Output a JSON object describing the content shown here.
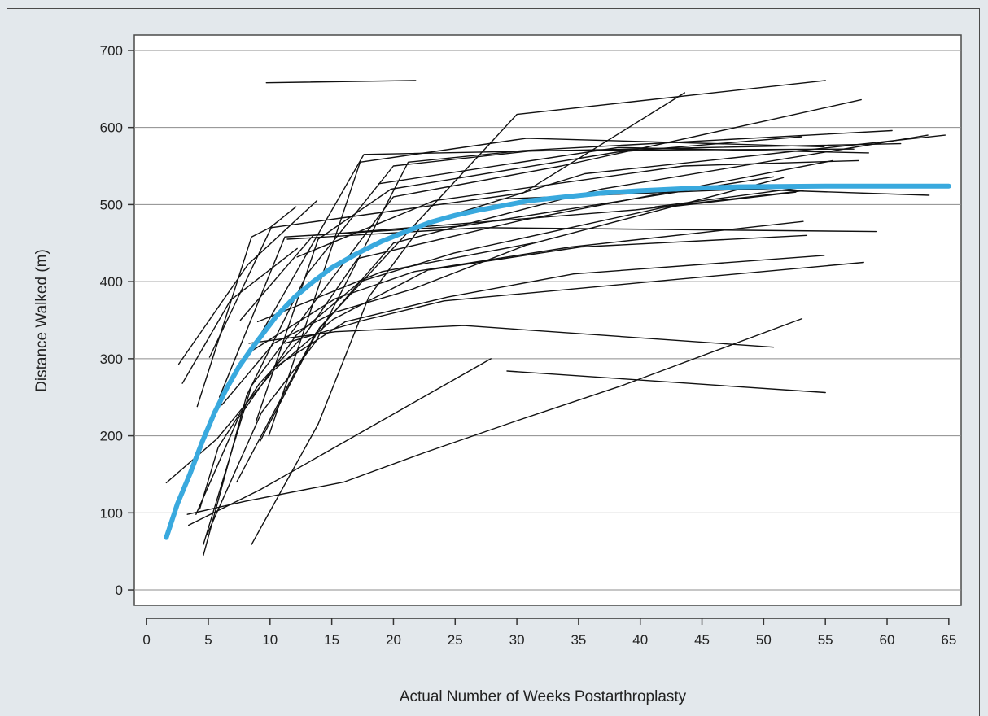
{
  "chart_data": {
    "type": "line",
    "title": "",
    "xlabel": "Actual Number of Weeks Postarthroplasty",
    "ylabel": "Distance Walked (m)",
    "xlim": [
      -1,
      66
    ],
    "ylim": [
      -20,
      720
    ],
    "xticks": [
      0,
      5,
      10,
      15,
      20,
      25,
      30,
      35,
      40,
      45,
      50,
      55,
      60,
      65
    ],
    "yticks": [
      0,
      100,
      200,
      300,
      400,
      500,
      600,
      700
    ],
    "grid": "horizontal",
    "colors": {
      "individual": "#111111",
      "fitted": "#39a9de",
      "grid": "#8c8c8c"
    },
    "series": [
      {
        "kind": "individual",
        "points": [
          [
            9.7,
            658
          ],
          [
            21.8,
            661
          ]
        ]
      },
      {
        "kind": "individual",
        "points": [
          [
            2.6,
            293
          ],
          [
            8.2,
            422
          ],
          [
            13.8,
            505
          ]
        ]
      },
      {
        "kind": "individual",
        "points": [
          [
            2.9,
            268
          ],
          [
            6.8,
            376
          ],
          [
            12.2,
            443
          ]
        ]
      },
      {
        "kind": "individual",
        "points": [
          [
            4.1,
            238
          ],
          [
            8.5,
            458
          ],
          [
            10,
            470
          ],
          [
            12.1,
            497
          ]
        ]
      },
      {
        "kind": "individual",
        "points": [
          [
            5.1,
            302
          ],
          [
            10.1,
            470
          ],
          [
            30.5,
            515
          ],
          [
            43.6,
            645
          ]
        ]
      },
      {
        "kind": "individual",
        "points": [
          [
            5.9,
            250
          ],
          [
            11.2,
            458
          ],
          [
            25.5,
            472
          ],
          [
            50.8,
            536
          ]
        ]
      },
      {
        "kind": "individual",
        "points": [
          [
            8.1,
            300
          ],
          [
            17.6,
            565
          ],
          [
            61.1,
            579
          ]
        ]
      },
      {
        "kind": "individual",
        "points": [
          [
            9.9,
            200
          ],
          [
            17.3,
            555
          ],
          [
            30.8,
            586
          ],
          [
            54.9,
            575
          ]
        ]
      },
      {
        "kind": "individual",
        "points": [
          [
            9.2,
            193
          ],
          [
            14,
            340
          ],
          [
            30,
            617
          ],
          [
            55,
            661
          ]
        ]
      },
      {
        "kind": "individual",
        "points": [
          [
            4.6,
            59
          ],
          [
            8.5,
            265
          ],
          [
            20,
            510
          ],
          [
            33.6,
            550
          ],
          [
            57.9,
            636
          ]
        ]
      },
      {
        "kind": "individual",
        "points": [
          [
            4.6,
            45
          ],
          [
            8.1,
            252
          ],
          [
            13,
            410
          ],
          [
            20,
            550
          ],
          [
            31.4,
            570
          ],
          [
            57.3,
            572
          ]
        ]
      },
      {
        "kind": "individual",
        "points": [
          [
            7.3,
            140
          ],
          [
            13.7,
            333
          ],
          [
            20,
            450
          ],
          [
            36.8,
            520
          ],
          [
            63.3,
            590
          ]
        ]
      },
      {
        "kind": "individual",
        "points": [
          [
            8.5,
            59
          ],
          [
            13.9,
            215
          ],
          [
            18,
            380
          ],
          [
            22.4,
            475
          ],
          [
            35.5,
            540
          ],
          [
            64.7,
            590
          ]
        ]
      },
      {
        "kind": "individual",
        "points": [
          [
            4.9,
            72
          ],
          [
            9.3,
            230
          ],
          [
            13.7,
            322
          ],
          [
            21.2,
            555
          ],
          [
            30.5,
            570
          ],
          [
            60.4,
            596
          ]
        ]
      },
      {
        "kind": "individual",
        "points": [
          [
            18.8,
            527
          ],
          [
            38.2,
            574
          ],
          [
            58.5,
            567
          ]
        ]
      },
      {
        "kind": "individual",
        "points": [
          [
            7.6,
            350
          ],
          [
            13.5,
            460
          ],
          [
            39.6,
            493
          ],
          [
            53.2,
            518
          ]
        ]
      },
      {
        "kind": "individual",
        "points": [
          [
            12.2,
            432
          ],
          [
            23.3,
            505
          ],
          [
            43.5,
            550
          ],
          [
            57.7,
            557
          ]
        ]
      },
      {
        "kind": "individual",
        "points": [
          [
            11.4,
            455
          ],
          [
            27.1,
            470
          ],
          [
            59.1,
            465
          ]
        ]
      },
      {
        "kind": "individual",
        "points": [
          [
            8.9,
            220
          ],
          [
            13.9,
            455
          ],
          [
            19.8,
            520
          ],
          [
            38.1,
            568
          ],
          [
            53.1,
            588
          ]
        ]
      },
      {
        "kind": "individual",
        "points": [
          [
            8.5,
            310
          ],
          [
            15.3,
            378
          ],
          [
            21.7,
            413
          ],
          [
            34.4,
            445
          ],
          [
            53.2,
            478
          ]
        ]
      },
      {
        "kind": "individual",
        "points": [
          [
            9,
            348
          ],
          [
            19.1,
            413
          ],
          [
            31.3,
            450
          ]
        ]
      },
      {
        "kind": "individual",
        "points": [
          [
            10.5,
            290
          ],
          [
            16.1,
            348
          ],
          [
            24.4,
            380
          ],
          [
            34.6,
            410
          ],
          [
            54.9,
            434
          ]
        ]
      },
      {
        "kind": "individual",
        "points": [
          [
            11.2,
            320
          ],
          [
            17.6,
            350
          ],
          [
            24.1,
            375
          ],
          [
            41,
            400
          ],
          [
            58.1,
            425
          ]
        ]
      },
      {
        "kind": "individual",
        "points": [
          [
            8.3,
            320
          ],
          [
            15.3,
            335
          ],
          [
            25.7,
            343
          ],
          [
            50.8,
            315
          ]
        ]
      },
      {
        "kind": "individual",
        "points": [
          [
            29.2,
            284
          ],
          [
            55,
            256
          ]
        ]
      },
      {
        "kind": "individual",
        "points": [
          [
            3.3,
            98
          ],
          [
            8,
            115
          ],
          [
            16,
            140
          ],
          [
            22.5,
            178
          ],
          [
            30.1,
            220
          ],
          [
            38.5,
            265
          ],
          [
            53.1,
            352
          ]
        ]
      },
      {
        "kind": "individual",
        "points": [
          [
            3.4,
            84
          ],
          [
            9.2,
            130
          ],
          [
            19.1,
            220
          ],
          [
            27.9,
            300
          ]
        ]
      },
      {
        "kind": "individual",
        "points": [
          [
            1.6,
            139
          ],
          [
            5.7,
            196
          ],
          [
            10.3,
            285
          ],
          [
            15.1,
            351
          ],
          [
            22.8,
            415
          ],
          [
            35.2,
            445
          ],
          [
            53.5,
            460
          ]
        ]
      },
      {
        "kind": "individual",
        "points": [
          [
            4.3,
            105
          ],
          [
            5.8,
            185
          ],
          [
            9.1,
            267
          ],
          [
            13,
            335
          ],
          [
            17.1,
            430
          ],
          [
            30.5,
            480
          ],
          [
            55.6,
            557
          ]
        ]
      },
      {
        "kind": "individual",
        "points": [
          [
            6.1,
            240
          ],
          [
            10.3,
            320
          ],
          [
            15.2,
            360
          ],
          [
            21.5,
            390
          ],
          [
            30.7,
            447
          ],
          [
            51.6,
            535
          ]
        ]
      },
      {
        "kind": "individual",
        "points": [
          [
            4,
            98
          ],
          [
            7.4,
            222
          ],
          [
            12.1,
            330
          ],
          [
            17.3,
            400
          ],
          [
            24.9,
            437
          ],
          [
            41.8,
            496
          ],
          [
            52.6,
            516
          ]
        ]
      },
      {
        "kind": "individual",
        "points": [
          [
            28.3,
            507
          ],
          [
            48.5,
            520
          ],
          [
            63.4,
            512
          ]
        ]
      },
      {
        "kind": "individual",
        "points": [
          [
            41.2,
            497
          ],
          [
            54.5,
            525
          ]
        ]
      },
      {
        "kind": "fitted",
        "points": [
          [
            1.6,
            68
          ],
          [
            2.5,
            112
          ],
          [
            3.5,
            150
          ],
          [
            4.5,
            192
          ],
          [
            5.5,
            230
          ],
          [
            6.5,
            262
          ],
          [
            7.5,
            290
          ],
          [
            8.5,
            313
          ],
          [
            9.5,
            334
          ],
          [
            10.5,
            355
          ],
          [
            12,
            380
          ],
          [
            13.5,
            400
          ],
          [
            15,
            418
          ],
          [
            17,
            436
          ],
          [
            19,
            452
          ],
          [
            21,
            465
          ],
          [
            23,
            477
          ],
          [
            25,
            486
          ],
          [
            27,
            493
          ],
          [
            29,
            499
          ],
          [
            31,
            505
          ],
          [
            34,
            510
          ],
          [
            37,
            515
          ],
          [
            40,
            518
          ],
          [
            44,
            521
          ],
          [
            48,
            523
          ],
          [
            55,
            524
          ],
          [
            65,
            524
          ]
        ]
      }
    ]
  }
}
